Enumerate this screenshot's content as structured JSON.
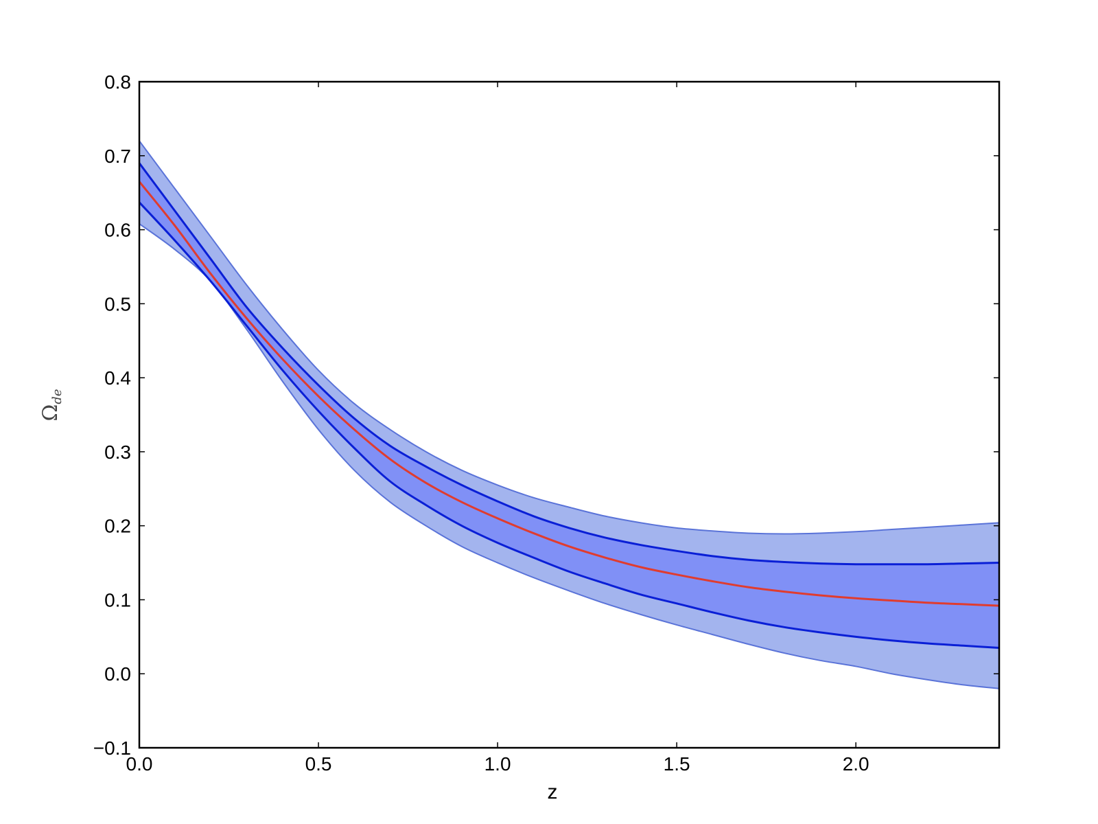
{
  "chart_data": {
    "type": "line",
    "title": "",
    "xlabel": "z",
    "ylabel": "Ω",
    "ylabel_subscript": "de",
    "xlim": [
      0.0,
      2.4
    ],
    "ylim": [
      -0.1,
      0.8
    ],
    "xticks": [
      0.0,
      0.5,
      1.0,
      1.5,
      2.0
    ],
    "xtick_labels": [
      "0.0",
      "0.5",
      "1.0",
      "1.5",
      "2.0"
    ],
    "yticks": [
      -0.1,
      0.0,
      0.1,
      0.2,
      0.3,
      0.4,
      0.5,
      0.6,
      0.7,
      0.8
    ],
    "ytick_labels": [
      "−0.1",
      "0.0",
      "0.1",
      "0.2",
      "0.3",
      "0.4",
      "0.5",
      "0.6",
      "0.7",
      "0.8"
    ],
    "grid": false,
    "legend": "none",
    "x": [
      0.0,
      0.1,
      0.2,
      0.3,
      0.4,
      0.5,
      0.6,
      0.7,
      0.8,
      0.9,
      1.0,
      1.1,
      1.2,
      1.3,
      1.4,
      1.5,
      1.6,
      1.7,
      1.8,
      1.9,
      2.0,
      2.1,
      2.2,
      2.3,
      2.4
    ],
    "series": [
      {
        "role": "outer-band-upper",
        "values": [
          0.72,
          0.655,
          0.59,
          0.525,
          0.465,
          0.41,
          0.365,
          0.33,
          0.3,
          0.275,
          0.255,
          0.238,
          0.225,
          0.213,
          0.204,
          0.197,
          0.193,
          0.19,
          0.189,
          0.19,
          0.192,
          0.195,
          0.198,
          0.201,
          0.204
        ]
      },
      {
        "role": "inner-band-upper",
        "values": [
          0.69,
          0.625,
          0.56,
          0.495,
          0.44,
          0.39,
          0.345,
          0.308,
          0.28,
          0.255,
          0.233,
          0.213,
          0.197,
          0.184,
          0.174,
          0.166,
          0.159,
          0.154,
          0.151,
          0.149,
          0.148,
          0.148,
          0.148,
          0.149,
          0.15
        ]
      },
      {
        "role": "median",
        "values": [
          0.665,
          0.605,
          0.54,
          0.48,
          0.425,
          0.375,
          0.33,
          0.29,
          0.258,
          0.232,
          0.21,
          0.19,
          0.172,
          0.157,
          0.144,
          0.134,
          0.125,
          0.117,
          0.111,
          0.106,
          0.102,
          0.099,
          0.096,
          0.094,
          0.092
        ]
      },
      {
        "role": "inner-band-lower",
        "values": [
          0.637,
          0.585,
          0.53,
          0.47,
          0.41,
          0.355,
          0.305,
          0.26,
          0.228,
          0.2,
          0.177,
          0.157,
          0.138,
          0.122,
          0.107,
          0.095,
          0.083,
          0.072,
          0.063,
          0.056,
          0.05,
          0.045,
          0.041,
          0.038,
          0.035
        ]
      },
      {
        "role": "outer-band-lower",
        "values": [
          0.608,
          0.573,
          0.53,
          0.465,
          0.395,
          0.33,
          0.275,
          0.232,
          0.2,
          0.172,
          0.15,
          0.13,
          0.112,
          0.095,
          0.08,
          0.066,
          0.053,
          0.04,
          0.028,
          0.018,
          0.01,
          0.0,
          -0.008,
          -0.015,
          -0.02
        ]
      }
    ],
    "colors": {
      "outer_band_fill": "#a3b4ee",
      "outer_band_edge": "#5a73d8",
      "inner_band_fill": "#8090f6",
      "inner_band_edge": "#0a1fd6",
      "median_line": "#e03c2f",
      "axes": "#000000"
    }
  }
}
